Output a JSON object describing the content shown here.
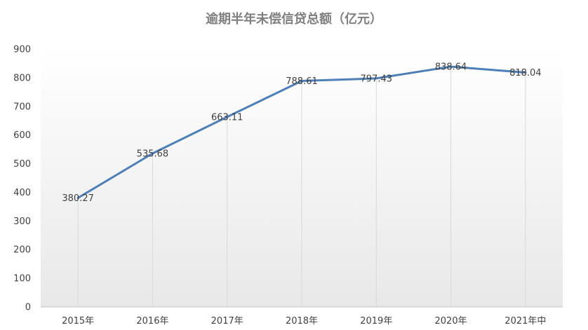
{
  "chart_data": {
    "type": "line",
    "title": "逾期半年未偿信贷总额（亿元）",
    "xlabel": "",
    "ylabel": "",
    "categories": [
      "2015年",
      "2016年",
      "2017年",
      "2018年",
      "2019年",
      "2020年",
      "2021年中"
    ],
    "series": [
      {
        "values": [
          380.27,
          535.68,
          663.11,
          788.61,
          797.43,
          838.64,
          818.04
        ],
        "labels": [
          "380.27",
          "535.68",
          "663.11",
          "788.61",
          "797.43",
          "838.64",
          "818.04"
        ],
        "color": "#4e7fb8"
      }
    ],
    "ylim": [
      0,
      900
    ],
    "yticks": [
      "0",
      "100",
      "200",
      "300",
      "400",
      "500",
      "600",
      "700",
      "800",
      "900"
    ],
    "grid": false,
    "legend": "none",
    "data_labels": true
  }
}
